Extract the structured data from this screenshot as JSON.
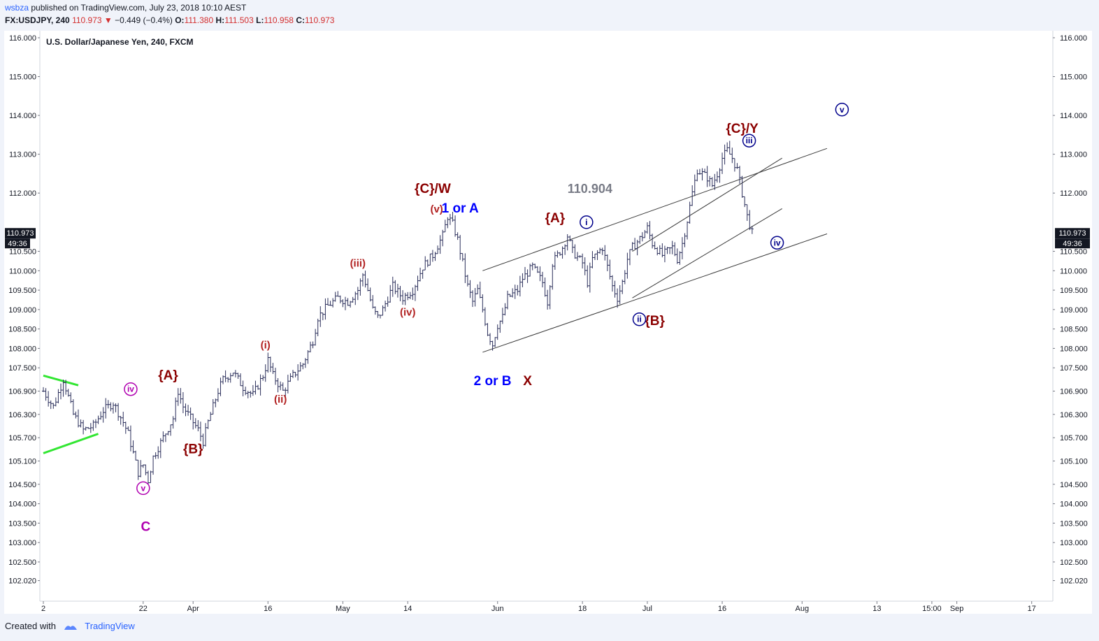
{
  "header": {
    "user": "wsbza",
    "published_text": " published on TradingView.com, July 23, 2018 10:10 AEST",
    "symbol": "FX:USDJPY, 240",
    "price": "110.973",
    "change_arrow": "▼",
    "change": "−0.449 (−0.4%)",
    "o_label": "O:",
    "o_value": "111.380",
    "h_label": "H:",
    "h_value": "111.503",
    "l_label": "L:",
    "l_value": "110.958",
    "c_label": "C:",
    "c_value": "110.973"
  },
  "footer": {
    "created_with": "Created with",
    "brand": "TradingView"
  },
  "chart_data": {
    "type": "candlestick",
    "title": "U.S. Dollar/Japanese Yen, 240, FXCM",
    "y_ticks": [
      "116.000",
      "115.000",
      "114.000",
      "113.000",
      "112.000",
      "110.500",
      "110.000",
      "109.500",
      "109.000",
      "108.500",
      "108.000",
      "107.500",
      "106.900",
      "106.300",
      "105.700",
      "105.100",
      "104.500",
      "104.000",
      "103.500",
      "103.000",
      "102.500",
      "102.020"
    ],
    "y_tick_values": [
      116,
      115,
      114,
      113,
      112,
      110.5,
      110,
      109.5,
      109,
      108.5,
      108,
      107.5,
      106.9,
      106.3,
      105.7,
      105.1,
      104.5,
      104,
      103.5,
      103,
      102.5,
      102.02
    ],
    "x_ticks": [
      {
        "label": "2",
        "t": 0
      },
      {
        "label": "22",
        "t": 20
      },
      {
        "label": "Apr",
        "t": 30
      },
      {
        "label": "16",
        "t": 45
      },
      {
        "label": "May",
        "t": 60
      },
      {
        "label": "14",
        "t": 73
      },
      {
        "label": "Jun",
        "t": 91
      },
      {
        "label": "18",
        "t": 108
      },
      {
        "label": "Jul",
        "t": 121
      },
      {
        "label": "16",
        "t": 136
      },
      {
        "label": "Aug",
        "t": 152
      },
      {
        "label": "13",
        "t": 167
      },
      {
        "label": "15:00",
        "t": 178
      },
      {
        "label": "Sep",
        "t": 183
      },
      {
        "label": "17",
        "t": 198
      }
    ],
    "current_price": {
      "label": "110.973",
      "value": 110.973,
      "timer": "49:36"
    },
    "price_path": [
      [
        0,
        106.9
      ],
      [
        2,
        106.5
      ],
      [
        4,
        107.2
      ],
      [
        6,
        106.3
      ],
      [
        8,
        105.9
      ],
      [
        10,
        106.0
      ],
      [
        12,
        106.4
      ],
      [
        14,
        106.6
      ],
      [
        16,
        106.1
      ],
      [
        17,
        105.8
      ],
      [
        18,
        105.3
      ],
      [
        19,
        104.8
      ],
      [
        20,
        105.0
      ],
      [
        21,
        104.6
      ],
      [
        22,
        105.2
      ],
      [
        24,
        105.7
      ],
      [
        26,
        106.2
      ],
      [
        27,
        106.9
      ],
      [
        28,
        106.5
      ],
      [
        30,
        106.1
      ],
      [
        31,
        105.9
      ],
      [
        32,
        105.6
      ],
      [
        33,
        106.1
      ],
      [
        34,
        106.5
      ],
      [
        35,
        106.9
      ],
      [
        36,
        107.2
      ],
      [
        38,
        107.4
      ],
      [
        40,
        107.0
      ],
      [
        42,
        106.8
      ],
      [
        44,
        107.3
      ],
      [
        45,
        107.7
      ],
      [
        46,
        107.3
      ],
      [
        47,
        107.1
      ],
      [
        48,
        106.9
      ],
      [
        50,
        107.3
      ],
      [
        52,
        107.6
      ],
      [
        54,
        108.2
      ],
      [
        55,
        108.8
      ],
      [
        57,
        109.1
      ],
      [
        59,
        109.3
      ],
      [
        61,
        109.2
      ],
      [
        63,
        109.5
      ],
      [
        64,
        109.9
      ],
      [
        65,
        109.5
      ],
      [
        66,
        109.0
      ],
      [
        67,
        108.8
      ],
      [
        68,
        109.0
      ],
      [
        70,
        109.6
      ],
      [
        72,
        109.3
      ],
      [
        74,
        109.5
      ],
      [
        76,
        110.1
      ],
      [
        78,
        110.4
      ],
      [
        80,
        110.9
      ],
      [
        81,
        111.4
      ],
      [
        82,
        111.2
      ],
      [
        83,
        110.8
      ],
      [
        84,
        110.2
      ],
      [
        85,
        109.6
      ],
      [
        86,
        109.2
      ],
      [
        87,
        109.5
      ],
      [
        88,
        109.0
      ],
      [
        89,
        108.4
      ],
      [
        90,
        108.1
      ],
      [
        91,
        108.6
      ],
      [
        92,
        108.8
      ],
      [
        93,
        109.3
      ],
      [
        95,
        109.5
      ],
      [
        96,
        109.8
      ],
      [
        98,
        110.1
      ],
      [
        100,
        109.7
      ],
      [
        101,
        109.2
      ],
      [
        102,
        110.2
      ],
      [
        104,
        110.6
      ],
      [
        105,
        110.9
      ],
      [
        106,
        110.5
      ],
      [
        108,
        110.2
      ],
      [
        109,
        109.7
      ],
      [
        110,
        110.3
      ],
      [
        112,
        110.6
      ],
      [
        113,
        110.1
      ],
      [
        114,
        109.6
      ],
      [
        115,
        109.3
      ],
      [
        116,
        109.7
      ],
      [
        117,
        110.3
      ],
      [
        118,
        110.6
      ],
      [
        120,
        110.9
      ],
      [
        121,
        111.1
      ],
      [
        122,
        110.7
      ],
      [
        124,
        110.4
      ],
      [
        126,
        110.6
      ],
      [
        127,
        110.3
      ],
      [
        128,
        110.7
      ],
      [
        129,
        111.3
      ],
      [
        130,
        112.0
      ],
      [
        131,
        112.6
      ],
      [
        133,
        112.4
      ],
      [
        134,
        112.2
      ],
      [
        135,
        112.5
      ],
      [
        136,
        112.9
      ],
      [
        137,
        113.1
      ],
      [
        138,
        112.9
      ],
      [
        139,
        112.6
      ],
      [
        140,
        112.0
      ],
      [
        141,
        111.4
      ],
      [
        142,
        110.97
      ]
    ],
    "wave_labels": [
      {
        "text": "{C}/W",
        "t": 78,
        "v": 112.0,
        "color": "#8b0000",
        "size": 19
      },
      {
        "text": "(v)",
        "t": 78.8,
        "v": 111.5,
        "color": "#b22222",
        "size": 15
      },
      {
        "text": "1 or A",
        "t": 83.5,
        "v": 111.5,
        "color": "#0000ff",
        "size": 19
      },
      {
        "text": "110.904",
        "t": 109.5,
        "v": 112.0,
        "color": "#787b86",
        "size": 18
      },
      {
        "text": "{A}",
        "t": 102.5,
        "v": 111.25,
        "color": "#8b0000",
        "size": 19
      },
      {
        "text": "{C}/Y",
        "t": 140,
        "v": 113.55,
        "color": "#8b0000",
        "size": 19
      },
      {
        "text": "{B}",
        "t": 122.5,
        "v": 108.6,
        "color": "#8b0000",
        "size": 19
      },
      {
        "text": "2 or B",
        "t": 90,
        "v": 107.05,
        "color": "#0000ff",
        "size": 19
      },
      {
        "text": "X",
        "t": 97,
        "v": 107.05,
        "color": "#8b0000",
        "size": 19
      },
      {
        "text": "(iii)",
        "t": 63,
        "v": 110.1,
        "color": "#b22222",
        "size": 15
      },
      {
        "text": "(iv)",
        "t": 73,
        "v": 108.84,
        "color": "#b22222",
        "size": 15
      },
      {
        "text": "(i)",
        "t": 44.5,
        "v": 108.0,
        "color": "#b22222",
        "size": 15
      },
      {
        "text": "(ii)",
        "t": 47.5,
        "v": 106.6,
        "color": "#b22222",
        "size": 15
      },
      {
        "text": "{A}",
        "t": 25,
        "v": 107.2,
        "color": "#8b0000",
        "size": 19
      },
      {
        "text": "{B}",
        "t": 30,
        "v": 105.3,
        "color": "#8b0000",
        "size": 19
      },
      {
        "text": "C",
        "t": 20.5,
        "v": 103.3,
        "color": "#b000b0",
        "size": 19
      }
    ],
    "circle_labels": [
      {
        "text": "iii",
        "t": 141.4,
        "v": 113.35,
        "color": "#00008b"
      },
      {
        "text": "i",
        "t": 108.8,
        "v": 111.25,
        "color": "#00008b"
      },
      {
        "text": "ii",
        "t": 119.4,
        "v": 108.75,
        "color": "#00008b"
      },
      {
        "text": "iv",
        "t": 147,
        "v": 110.72,
        "color": "#00008b"
      },
      {
        "text": "v",
        "t": 160,
        "v": 114.15,
        "color": "#00008b"
      },
      {
        "text": "iv",
        "t": 17.5,
        "v": 106.95,
        "color": "#b000b0"
      },
      {
        "text": "v",
        "t": 20,
        "v": 104.4,
        "color": "#b000b0"
      }
    ],
    "trendlines": [
      {
        "from": [
          88,
          110.0
        ],
        "to": [
          157,
          113.15
        ],
        "color": "#3a3a3a",
        "width": 1
      },
      {
        "from": [
          88,
          107.9
        ],
        "to": [
          157,
          110.95
        ],
        "color": "#3a3a3a",
        "width": 1
      },
      {
        "from": [
          118,
          110.5
        ],
        "to": [
          148,
          112.9
        ],
        "color": "#3a3a3a",
        "width": 1
      },
      {
        "from": [
          118,
          109.3
        ],
        "to": [
          148,
          111.6
        ],
        "color": "#3a3a3a",
        "width": 1
      },
      {
        "from": [
          0,
          107.3
        ],
        "to": [
          7,
          107.05
        ],
        "color": "#32e632",
        "width": 3
      },
      {
        "from": [
          0,
          105.3
        ],
        "to": [
          11,
          105.8
        ],
        "color": "#32e632",
        "width": 3
      }
    ]
  }
}
